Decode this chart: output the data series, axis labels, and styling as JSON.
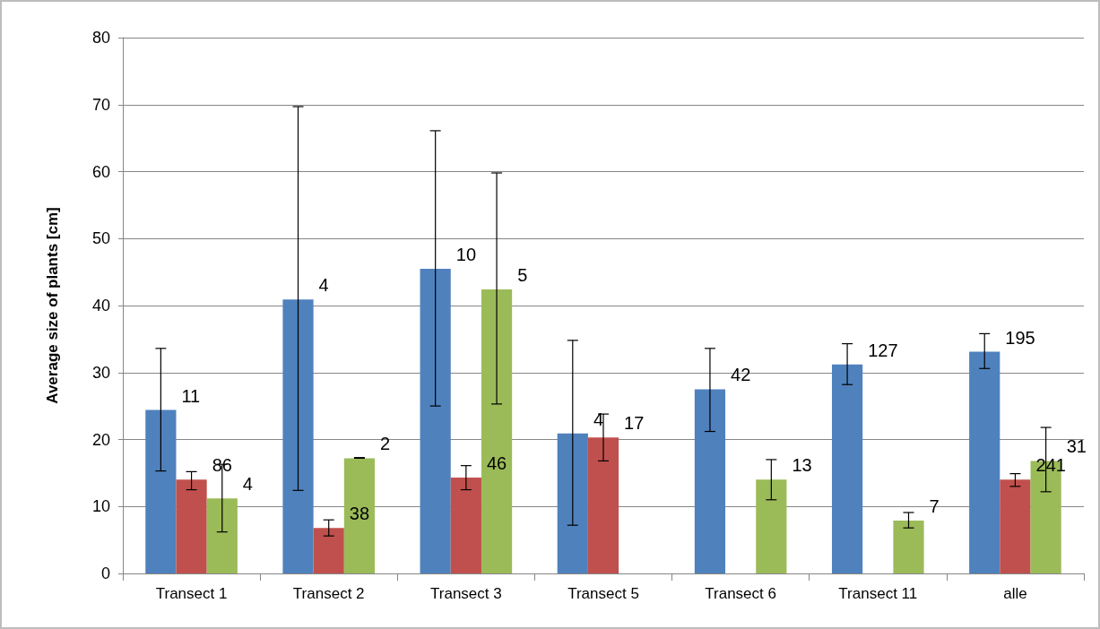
{
  "chart_data": {
    "type": "bar",
    "ylabel": "Average size of plants [cm]",
    "categories": [
      "Transect 1",
      "Transect 2",
      "Transect 3",
      "Transect 5",
      "Transect 6",
      "Transect 11",
      "alle"
    ],
    "ylim": [
      0,
      80
    ],
    "yticks": [
      0,
      10,
      20,
      30,
      40,
      50,
      60,
      70,
      80
    ],
    "grid": "y",
    "series": [
      {
        "color": "#4f81bd",
        "values": [
          24.4,
          40.9,
          45.5,
          20.9,
          27.5,
          31.2,
          33.1
        ],
        "errors": [
          [
            15.3,
            33.6
          ],
          [
            12.4,
            69.7
          ],
          [
            25.0,
            66.1
          ],
          [
            7.2,
            34.8
          ],
          [
            21.2,
            33.6
          ],
          [
            28.2,
            34.3
          ],
          [
            30.6,
            35.8
          ]
        ]
      },
      {
        "color": "#c0504d",
        "values": [
          14.0,
          6.8,
          14.3,
          20.3,
          null,
          null,
          14.0
        ],
        "errors": [
          [
            12.5,
            15.2
          ],
          [
            5.6,
            8.0
          ],
          [
            12.5,
            16.1
          ],
          [
            16.8,
            23.8
          ],
          null,
          null,
          [
            13.0,
            14.9
          ]
        ]
      },
      {
        "color": "#9bbb59",
        "values": [
          11.2,
          17.2,
          42.4,
          null,
          14.0,
          7.9,
          16.8
        ],
        "errors": [
          [
            6.2,
            16.3
          ],
          [
            17.2,
            17.3
          ],
          [
            25.3,
            59.8
          ],
          null,
          [
            11.0,
            17.0
          ],
          [
            6.8,
            9.1
          ],
          [
            12.2,
            21.8
          ]
        ]
      }
    ],
    "annotations": [
      "11",
      "86",
      "4",
      "4",
      "38",
      "2",
      "10",
      "46",
      "5",
      "4",
      "17",
      "42",
      "13",
      "127",
      "7",
      "195",
      "241",
      "31"
    ]
  }
}
